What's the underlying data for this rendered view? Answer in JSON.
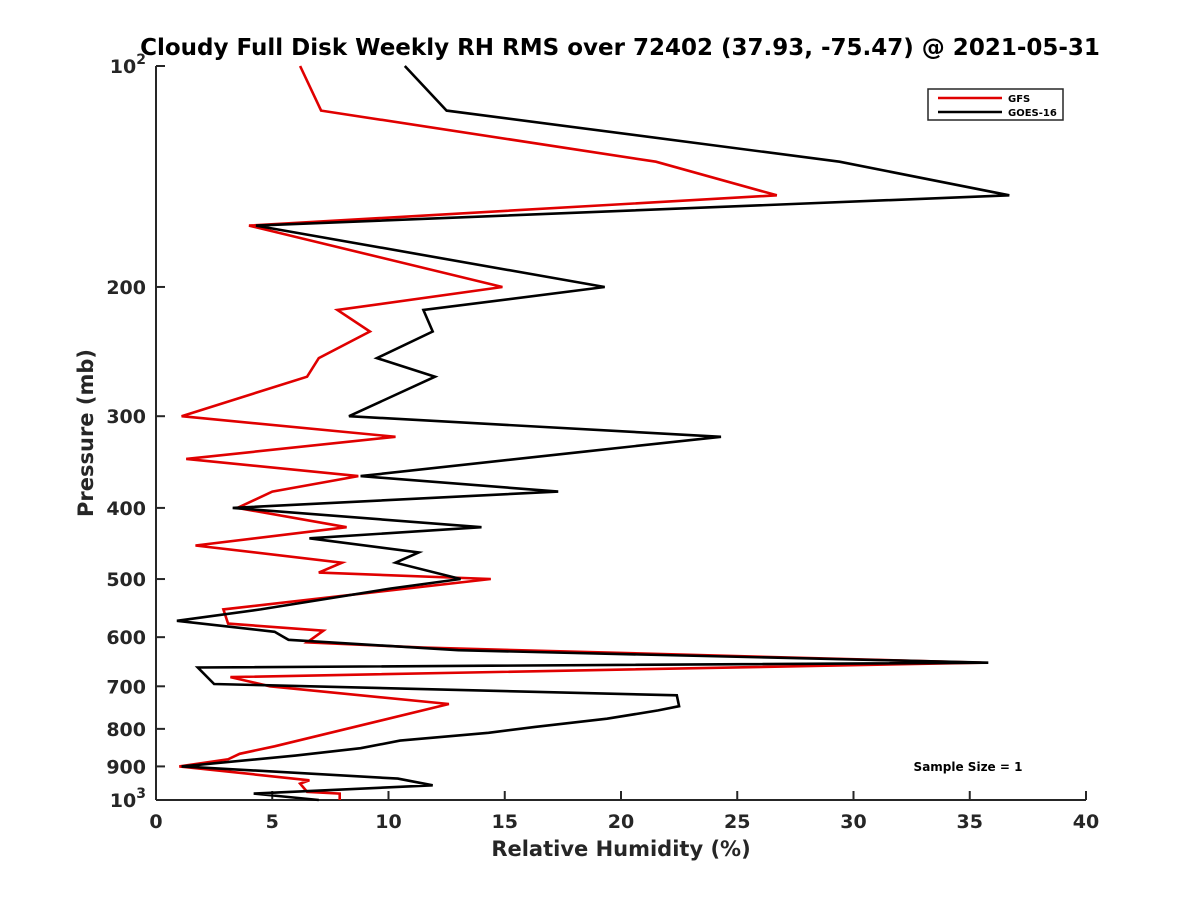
{
  "chart_data": {
    "type": "line",
    "title": "Cloudy Full Disk Weekly RH RMS over 72402 (37.93, -75.47) @ 2021-05-31",
    "xlabel": "Relative Humidity (%)",
    "ylabel": "Pressure (mb)",
    "xlim": [
      0,
      40
    ],
    "ylim": [
      100,
      1000
    ],
    "y_scale": "log",
    "y_reversed": true,
    "x_ticks": [
      0,
      5,
      10,
      15,
      20,
      25,
      30,
      35,
      40
    ],
    "y_ticks": [
      {
        "value": 100,
        "base": "10",
        "exp": "2"
      },
      {
        "value": 200,
        "label": "200"
      },
      {
        "value": 300,
        "label": "300"
      },
      {
        "value": 400,
        "label": "400"
      },
      {
        "value": 500,
        "label": "500"
      },
      {
        "value": 600,
        "label": "600"
      },
      {
        "value": 700,
        "label": "700"
      },
      {
        "value": 800,
        "label": "800"
      },
      {
        "value": 900,
        "label": "900"
      },
      {
        "value": 1000,
        "base": "10",
        "exp": "3"
      }
    ],
    "legend_position": "top-right",
    "grid": false,
    "annotation": "Sample Size = 1",
    "series": [
      {
        "name": "GFS",
        "color": "#e00000",
        "points": [
          [
            6.2,
            100
          ],
          [
            7.1,
            115
          ],
          [
            21.5,
            135
          ],
          [
            26.7,
            150
          ],
          [
            4.0,
            165
          ],
          [
            14.9,
            200
          ],
          [
            7.8,
            215
          ],
          [
            9.2,
            230
          ],
          [
            7.0,
            250
          ],
          [
            6.5,
            265
          ],
          [
            1.1,
            300
          ],
          [
            10.3,
            320
          ],
          [
            1.3,
            343
          ],
          [
            8.7,
            362
          ],
          [
            5.0,
            380
          ],
          [
            3.5,
            400
          ],
          [
            8.2,
            425
          ],
          [
            1.7,
            450
          ],
          [
            8.0,
            475
          ],
          [
            7.0,
            490
          ],
          [
            14.4,
            500
          ],
          [
            2.9,
            550
          ],
          [
            3.1,
            575
          ],
          [
            7.2,
            588
          ],
          [
            6.5,
            610
          ],
          [
            11.5,
            620
          ],
          [
            35.5,
            650
          ],
          [
            3.2,
            680
          ],
          [
            4.9,
            700
          ],
          [
            12.6,
            740
          ],
          [
            5.1,
            845
          ],
          [
            3.6,
            865
          ],
          [
            3.1,
            880
          ],
          [
            1.0,
            900
          ],
          [
            6.6,
            940
          ],
          [
            6.2,
            950
          ],
          [
            6.5,
            975
          ],
          [
            7.9,
            980
          ],
          [
            7.9,
            1000
          ]
        ]
      },
      {
        "name": "GOES-16",
        "color": "#000000",
        "points": [
          [
            10.7,
            100
          ],
          [
            12.5,
            115
          ],
          [
            29.4,
            135
          ],
          [
            36.7,
            150
          ],
          [
            4.3,
            165
          ],
          [
            19.3,
            200
          ],
          [
            11.5,
            215
          ],
          [
            11.9,
            230
          ],
          [
            9.5,
            250
          ],
          [
            12.0,
            265
          ],
          [
            8.3,
            300
          ],
          [
            24.3,
            320
          ],
          [
            18.5,
            335
          ],
          [
            8.8,
            362
          ],
          [
            17.3,
            380
          ],
          [
            3.3,
            400
          ],
          [
            14.0,
            425
          ],
          [
            6.6,
            440
          ],
          [
            11.3,
            460
          ],
          [
            10.3,
            475
          ],
          [
            13.1,
            500
          ],
          [
            10.1,
            515
          ],
          [
            4.5,
            550
          ],
          [
            0.9,
            570
          ],
          [
            5.1,
            590
          ],
          [
            5.7,
            605
          ],
          [
            13.0,
            625
          ],
          [
            35.8,
            650
          ],
          [
            1.8,
            660
          ],
          [
            2.5,
            695
          ],
          [
            22.4,
            720
          ],
          [
            22.5,
            745
          ],
          [
            21.6,
            755
          ],
          [
            19.4,
            775
          ],
          [
            16.3,
            795
          ],
          [
            14.3,
            810
          ],
          [
            10.5,
            830
          ],
          [
            8.8,
            850
          ],
          [
            6.0,
            870
          ],
          [
            1.1,
            900
          ],
          [
            10.4,
            935
          ],
          [
            11.9,
            955
          ],
          [
            4.2,
            980
          ],
          [
            7.0,
            1000
          ]
        ]
      }
    ]
  }
}
